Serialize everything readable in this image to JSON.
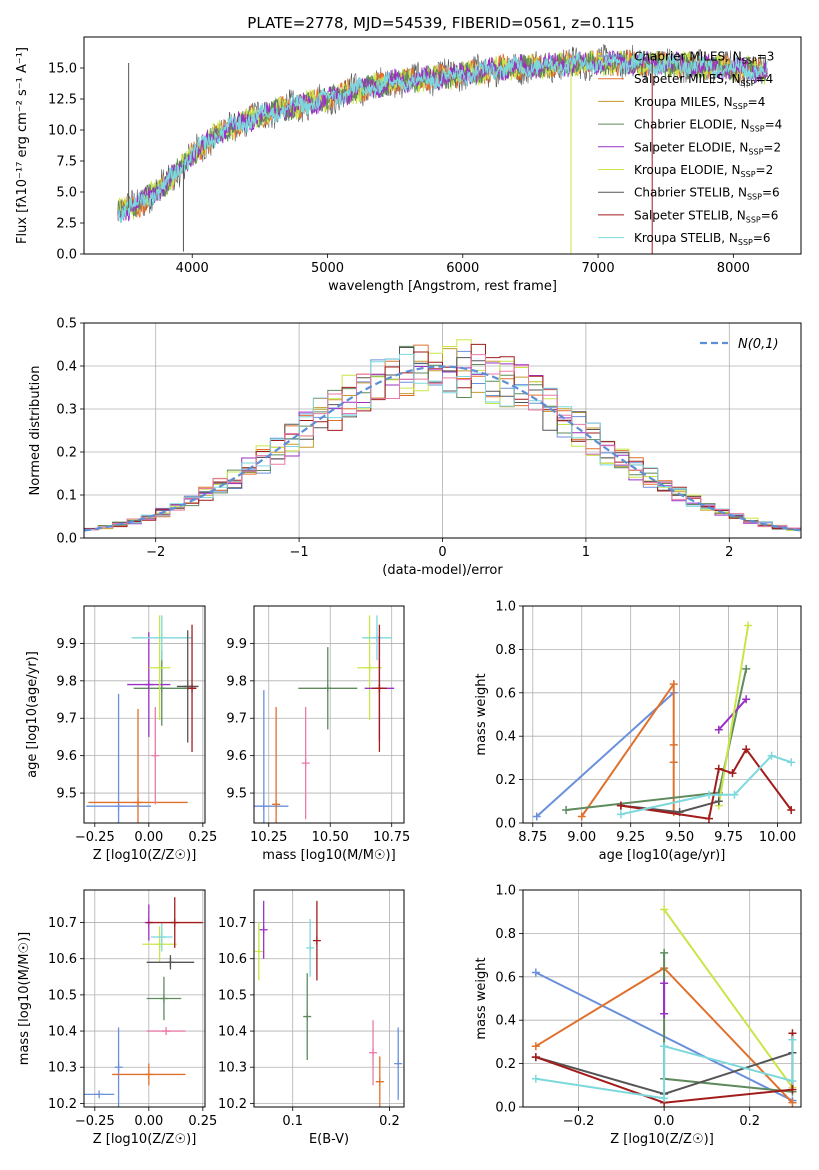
{
  "figure_title": "PLATE=2778, MJD=54539, FIBERID=0561, z=0.115",
  "colors": {
    "chabrier_miles": "#6a90dc",
    "salpeter_miles": "#e0712d",
    "kroupa_miles": "#c99a2e",
    "chabrier_elodie": "#5e8a5e",
    "salpeter_elodie": "#9b30c4",
    "kroupa_elodie": "#c8e64a",
    "chabrier_stelib": "#555555",
    "salpeter_stelib": "#a31c1c",
    "kroupa_stelib": "#7dd8dc",
    "pink": "#e87aa8",
    "gauss": "#5b8fd6",
    "grid": "#b0b0b0"
  },
  "chart_data": [
    {
      "id": "spectrum",
      "type": "line",
      "xlabel": "wavelength [Angstrom, rest frame]",
      "ylabel": "Flux [fλ10⁻¹⁷ erg cm⁻² s⁻¹ A⁻¹]",
      "xlim": [
        3200,
        8500
      ],
      "ylim": [
        0,
        17.5
      ],
      "xticks": [
        4000,
        5000,
        6000,
        7000,
        8000
      ],
      "yticks": [
        0.0,
        2.5,
        5.0,
        7.5,
        10.0,
        12.5,
        15.0
      ],
      "grid": false,
      "legend_position": "upper-right",
      "legend": [
        "Chabrier MILES, N_SSP=3",
        "Salpeter MILES, N_SSP=4",
        "Kroupa MILES, N_SSP=4",
        "Chabrier ELODIE, N_SSP=4",
        "Salpeter ELODIE, N_SSP=2",
        "Kroupa ELODIE, N_SSP=2",
        "Chabrier STELIB, N_SSP=6",
        "Salpeter STELIB, N_SSP=6",
        "Kroupa STELIB, N_SSP=6"
      ],
      "continuum": {
        "x": [
          3450,
          3600,
          3800,
          4000,
          4200,
          4500,
          4800,
          5000,
          5200,
          5500,
          5800,
          6000,
          6300,
          6600,
          6900,
          7200,
          7500,
          7800,
          8100,
          8250
        ],
        "y": [
          3.4,
          4.0,
          5.6,
          8.0,
          9.8,
          11.2,
          12.0,
          12.5,
          13.2,
          13.9,
          14.2,
          14.5,
          15.0,
          15.2,
          15.4,
          15.4,
          15.3,
          15.1,
          14.9,
          14.7
        ]
      },
      "features": [
        {
          "x": 3530,
          "y": 15.4
        },
        {
          "x": 3935,
          "y": 0.2
        },
        {
          "x": 6800,
          "y": 0.0
        },
        {
          "x": 7400,
          "y": 0.0
        }
      ]
    },
    {
      "id": "residuals",
      "type": "histogram",
      "xlabel": "(data-model)/error",
      "ylabel": "Normed distribution",
      "xlim": [
        -2.5,
        2.5
      ],
      "ylim": [
        0,
        0.5
      ],
      "xticks": [
        -2,
        -1,
        0,
        1,
        2
      ],
      "yticks": [
        0.0,
        0.1,
        0.2,
        0.3,
        0.4,
        0.5
      ],
      "grid": true,
      "legend_position": "upper-right",
      "legend": [
        "N(0,1)"
      ],
      "bin_edges_start": -2.5,
      "bin_width": 0.1
    },
    {
      "id": "age_vs_Z",
      "type": "scatter",
      "xlabel": "Z [log10(Z/Z☉)]",
      "ylabel": "age  [log10(age/yr)]",
      "xlim": [
        -0.3,
        0.26
      ],
      "ylim": [
        9.42,
        10.0
      ],
      "xticks": [
        -0.25,
        0.0,
        0.25
      ],
      "yticks": [
        9.5,
        9.6,
        9.7,
        9.8,
        9.9
      ],
      "points": [
        {
          "model": "chabrier_miles",
          "x": -0.14,
          "y": 9.465,
          "xerr": 0.15,
          "yerr": 0.3
        },
        {
          "model": "salpeter_miles",
          "x": -0.05,
          "y": 9.475,
          "xerr": 0.23,
          "yerr": 0.25
        },
        {
          "model": "pink",
          "x": 0.03,
          "y": 9.6,
          "xerr": 0.0,
          "yerr": 0.13
        },
        {
          "model": "chabrier_elodie",
          "x": 0.06,
          "y": 9.78,
          "xerr": 0.13,
          "yerr": 0.1
        },
        {
          "model": "salpeter_elodie",
          "x": 0.0,
          "y": 9.79,
          "xerr": 0.1,
          "yerr": 0.14
        },
        {
          "model": "kroupa_elodie",
          "x": 0.05,
          "y": 9.835,
          "xerr": 0.05,
          "yerr": 0.14
        },
        {
          "model": "kroupa_stelib",
          "x": 0.06,
          "y": 9.915,
          "xerr": 0.14,
          "yerr": 0.06
        },
        {
          "model": "chabrier_stelib",
          "x": 0.18,
          "y": 9.785,
          "xerr": 0.05,
          "yerr": 0.15
        },
        {
          "model": "salpeter_stelib",
          "x": 0.2,
          "y": 9.78,
          "xerr": 0.02,
          "yerr": 0.17
        }
      ]
    },
    {
      "id": "age_vs_mass",
      "type": "scatter",
      "xlabel": "mass [log10(M/M☉)]",
      "ylabel": "",
      "xlim": [
        10.19,
        10.8
      ],
      "ylim": [
        9.42,
        10.0
      ],
      "xticks": [
        10.25,
        10.5,
        10.75
      ],
      "yticks": [
        9.5,
        9.6,
        9.7,
        9.8,
        9.9
      ],
      "points": [
        {
          "model": "chabrier_miles",
          "x": 10.23,
          "y": 9.465,
          "xerr": 0.1,
          "yerr": 0.31
        },
        {
          "model": "salpeter_miles",
          "x": 10.28,
          "y": 9.47,
          "xerr": 0.0,
          "yerr": 0.26
        },
        {
          "model": "pink",
          "x": 10.4,
          "y": 9.58,
          "xerr": 0.0,
          "yerr": 0.15
        },
        {
          "model": "chabrier_elodie",
          "x": 10.49,
          "y": 9.78,
          "xerr": 0.12,
          "yerr": 0.11
        },
        {
          "model": "kroupa_elodie",
          "x": 10.66,
          "y": 9.835,
          "xerr": 0.05,
          "yerr": 0.14
        },
        {
          "model": "kroupa_stelib",
          "x": 10.69,
          "y": 9.915,
          "xerr": 0.06,
          "yerr": 0.06
        },
        {
          "model": "salpeter_elodie",
          "x": 10.7,
          "y": 9.78,
          "xerr": 0.06,
          "yerr": 0.14
        },
        {
          "model": "salpeter_stelib",
          "x": 10.7,
          "y": 9.78,
          "xerr": 0.03,
          "yerr": 0.17
        }
      ]
    },
    {
      "id": "weight_vs_age",
      "type": "line",
      "xlabel": "age  [log10(age/yr)]",
      "ylabel": "mass weight",
      "xlim": [
        8.7,
        10.12
      ],
      "ylim": [
        0,
        1.0
      ],
      "xticks": [
        8.75,
        9.0,
        9.25,
        9.5,
        9.75,
        10.0
      ],
      "yticks": [
        0.0,
        0.2,
        0.4,
        0.6,
        0.8,
        1.0
      ],
      "grid": true,
      "series": [
        {
          "model": "chabrier_miles",
          "x": [
            8.77,
            9.47
          ],
          "y": [
            0.03,
            0.6
          ]
        },
        {
          "model": "salpeter_miles",
          "x": [
            9.0,
            9.47,
            9.47,
            9.47,
            9.47
          ],
          "y": [
            0.03,
            0.64,
            0.36,
            0.28,
            0.05
          ]
        },
        {
          "model": "chabrier_elodie",
          "x": [
            8.92,
            9.7,
            9.84
          ],
          "y": [
            0.06,
            0.14,
            0.71
          ]
        },
        {
          "model": "salpeter_elodie",
          "x": [
            9.7,
            9.84
          ],
          "y": [
            0.43,
            0.57
          ]
        },
        {
          "model": "kroupa_elodie",
          "x": [
            9.7,
            9.85
          ],
          "y": [
            0.08,
            0.91
          ]
        },
        {
          "model": "chabrier_stelib",
          "x": [
            9.2,
            9.5,
            9.7
          ],
          "y": [
            0.08,
            0.05,
            0.1
          ]
        },
        {
          "model": "salpeter_stelib",
          "x": [
            9.2,
            9.65,
            9.7,
            9.77,
            9.84,
            10.07
          ],
          "y": [
            0.08,
            0.02,
            0.25,
            0.23,
            0.34,
            0.06
          ]
        },
        {
          "model": "kroupa_stelib",
          "x": [
            9.2,
            9.65,
            9.78,
            9.97,
            10.07
          ],
          "y": [
            0.04,
            0.13,
            0.13,
            0.31,
            0.28
          ]
        }
      ]
    },
    {
      "id": "mass_vs_Z",
      "type": "scatter",
      "xlabel": "Z [log10(Z/Z☉)]",
      "ylabel": "mass [log10(M/M☉)]",
      "xlim": [
        -0.3,
        0.26
      ],
      "ylim": [
        10.19,
        10.79
      ],
      "xticks": [
        -0.25,
        0.0,
        0.25
      ],
      "yticks": [
        10.2,
        10.3,
        10.4,
        10.5,
        10.6,
        10.7
      ],
      "points": [
        {
          "model": "chabrier_miles",
          "x": -0.23,
          "y": 10.225,
          "xerr": 0.07,
          "yerr": 0.0
        },
        {
          "model": "chabrier_miles",
          "x": -0.14,
          "y": 10.3,
          "xerr": 0.0,
          "yerr": 0.11
        },
        {
          "model": "salpeter_miles",
          "x": 0.0,
          "y": 10.28,
          "xerr": 0.17,
          "yerr": 0.03
        },
        {
          "model": "pink",
          "x": 0.08,
          "y": 10.4,
          "xerr": 0.09,
          "yerr": 0.0
        },
        {
          "model": "chabrier_elodie",
          "x": 0.07,
          "y": 10.49,
          "xerr": 0.08,
          "yerr": 0.06
        },
        {
          "model": "kroupa_elodie",
          "x": 0.05,
          "y": 10.64,
          "xerr": 0.08,
          "yerr": 0.05
        },
        {
          "model": "salpeter_elodie",
          "x": 0.0,
          "y": 10.7,
          "xerr": 0.0,
          "yerr": 0.05
        },
        {
          "model": "chabrier_stelib",
          "x": 0.1,
          "y": 10.59,
          "xerr": 0.11,
          "yerr": 0.02
        },
        {
          "model": "kroupa_stelib",
          "x": 0.06,
          "y": 10.66,
          "xerr": 0.05,
          "yerr": 0.04
        },
        {
          "model": "salpeter_stelib",
          "x": 0.12,
          "y": 10.7,
          "xerr": 0.13,
          "yerr": 0.07
        }
      ]
    },
    {
      "id": "mass_vs_ebv",
      "type": "scatter",
      "xlabel": "E(B-V)",
      "ylabel": "",
      "xlim": [
        0.06,
        0.215
      ],
      "ylim": [
        10.19,
        10.79
      ],
      "xticks": [
        0.1,
        0.2
      ],
      "yticks": [
        10.2,
        10.3,
        10.4,
        10.5,
        10.6,
        10.7
      ],
      "points": [
        {
          "model": "kroupa_elodie",
          "x": 0.065,
          "y": 10.62,
          "xerr": 0.0,
          "yerr": 0.08
        },
        {
          "model": "salpeter_elodie",
          "x": 0.07,
          "y": 10.68,
          "xerr": 0.0,
          "yerr": 0.08
        },
        {
          "model": "chabrier_elodie",
          "x": 0.115,
          "y": 10.44,
          "xerr": 0.0,
          "yerr": 0.12
        },
        {
          "model": "kroupa_stelib",
          "x": 0.118,
          "y": 10.63,
          "xerr": 0.0,
          "yerr": 0.08
        },
        {
          "model": "salpeter_stelib",
          "x": 0.125,
          "y": 10.65,
          "xerr": 0.0,
          "yerr": 0.11
        },
        {
          "model": "pink",
          "x": 0.183,
          "y": 10.34,
          "xerr": 0.0,
          "yerr": 0.09
        },
        {
          "model": "salpeter_miles",
          "x": 0.19,
          "y": 10.26,
          "xerr": 0.0,
          "yerr": 0.07
        },
        {
          "model": "chabrier_miles",
          "x": 0.209,
          "y": 10.31,
          "xerr": 0.0,
          "yerr": 0.1
        }
      ]
    },
    {
      "id": "weight_vs_Z",
      "type": "line",
      "xlabel": "Z [log10(Z/Z☉)]",
      "ylabel": "mass weight",
      "xlim": [
        -0.33,
        0.32
      ],
      "ylim": [
        0,
        1.0
      ],
      "xticks": [
        -0.2,
        0.0,
        0.2
      ],
      "yticks": [
        0.0,
        0.2,
        0.4,
        0.6,
        0.8,
        1.0
      ],
      "grid": true,
      "series": [
        {
          "model": "chabrier_miles",
          "x": [
            -0.3,
            0.3
          ],
          "y": [
            0.62,
            0.03
          ]
        },
        {
          "model": "salpeter_miles",
          "x": [
            -0.3,
            0.0,
            0.3
          ],
          "y": [
            0.28,
            0.64,
            0.02
          ]
        },
        {
          "model": "kroupa_elodie",
          "x": [
            0.0,
            0.3
          ],
          "y": [
            0.91,
            0.09
          ]
        },
        {
          "model": "chabrier_elodie",
          "x": [
            0.0,
            0.0,
            0.3
          ],
          "y": [
            0.71,
            0.13,
            0.07
          ]
        },
        {
          "model": "salpeter_elodie",
          "x": [
            0.0,
            0.0
          ],
          "y": [
            0.57,
            0.43
          ]
        },
        {
          "model": "chabrier_stelib",
          "x": [
            -0.3,
            0.0,
            0.3
          ],
          "y": [
            0.23,
            0.06,
            0.25
          ]
        },
        {
          "model": "salpeter_stelib",
          "x": [
            -0.3,
            0.0,
            0.3,
            0.3
          ],
          "y": [
            0.23,
            0.02,
            0.08,
            0.34
          ]
        },
        {
          "model": "kroupa_stelib",
          "x": [
            -0.3,
            0.0,
            0.0,
            0.3,
            0.3
          ],
          "y": [
            0.13,
            0.04,
            0.28,
            0.12,
            0.31
          ]
        }
      ]
    }
  ]
}
